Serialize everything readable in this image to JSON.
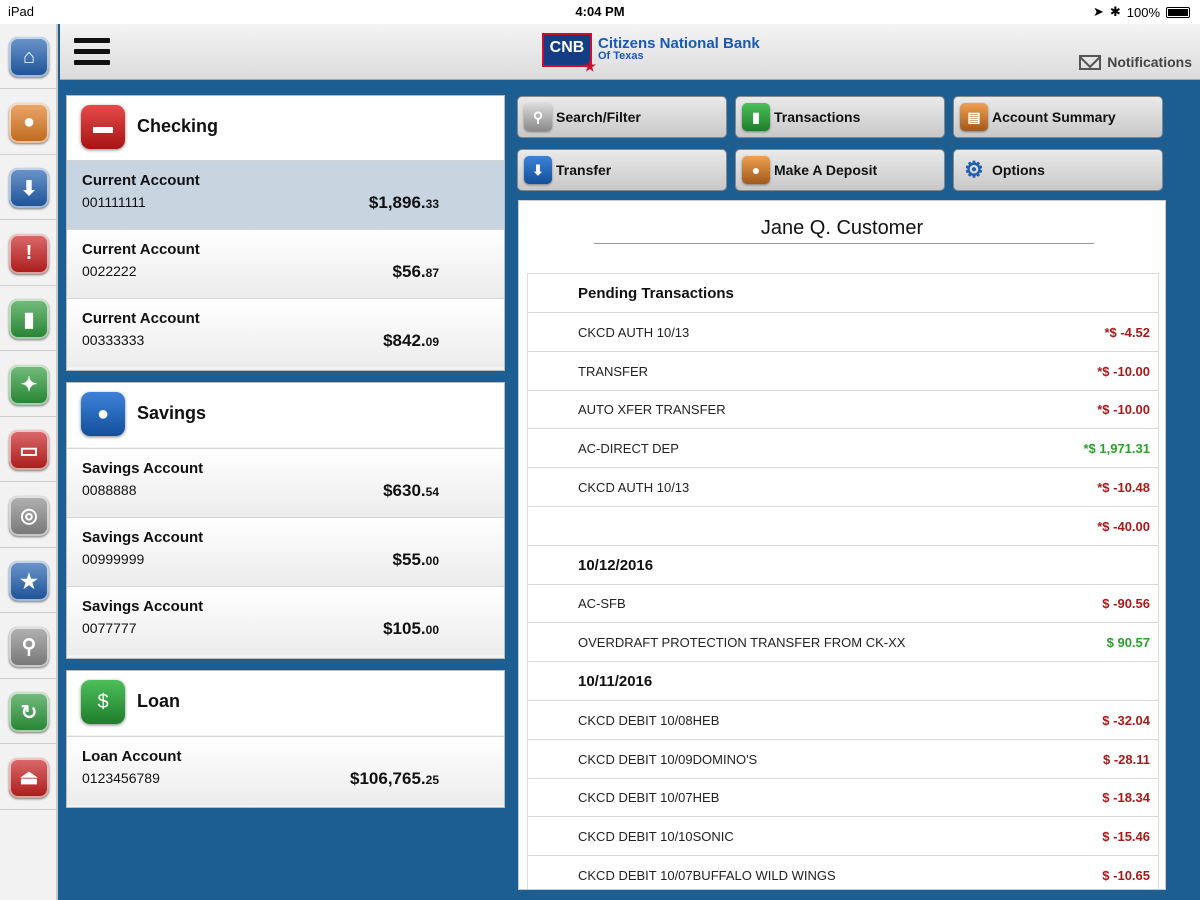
{
  "status_bar": {
    "device": "iPad",
    "time": "4:04 PM",
    "battery": "100%"
  },
  "header": {
    "bank_abbrev": "CNB",
    "bank_line1": "Citizens National Bank",
    "bank_line2": "Of Texas",
    "notifications_label": "Notifications"
  },
  "sidebar": {
    "icons": [
      "home-icon",
      "piggy-bank-icon",
      "download-icon",
      "alert-icon",
      "chart-icon",
      "handshake-icon",
      "chat-icon",
      "settings-icon",
      "globe-star-icon",
      "search-icon",
      "refresh-icon",
      "logout-icon"
    ],
    "colors": [
      "#1f5fb0",
      "#e07a1f",
      "#1f5fb0",
      "#c81e1e",
      "#2c9a3a",
      "#2c9a3a",
      "#c81e1e",
      "#8a8a8a",
      "#1f5fb0",
      "#8a8a8a",
      "#2c9a3a",
      "#c81e1e"
    ]
  },
  "checking": {
    "title": "Checking",
    "accounts": [
      {
        "name": "Current Account",
        "number": "001111111",
        "balance_main": "$1,896.",
        "balance_cents": "33"
      },
      {
        "name": "Current Account",
        "number": "0022222",
        "balance_main": "$56.",
        "balance_cents": "87"
      },
      {
        "name": "Current Account",
        "number": "00333333",
        "balance_main": "$842.",
        "balance_cents": "09"
      }
    ]
  },
  "savings": {
    "title": "Savings",
    "accounts": [
      {
        "name": "Savings Account",
        "number": "0088888",
        "balance_main": "$630.",
        "balance_cents": "54"
      },
      {
        "name": "Savings Account",
        "number": "00999999",
        "balance_main": "$55.",
        "balance_cents": "00"
      },
      {
        "name": "Savings Account",
        "number": "0077777",
        "balance_main": "$105.",
        "balance_cents": "00"
      }
    ]
  },
  "loan": {
    "title": "Loan",
    "accounts": [
      {
        "name": "Loan Account",
        "number": "0123456789",
        "balance_main": "$106,765.",
        "balance_cents": "25"
      }
    ]
  },
  "actions": {
    "search_filter": "Search/Filter",
    "transactions": "Transactions",
    "account_summary": "Account Summary",
    "transfer": "Transfer",
    "make_deposit": "Make A Deposit",
    "options": "Options"
  },
  "detail": {
    "customer_name": "Jane Q. Customer",
    "rows": [
      {
        "type": "heading",
        "desc": "Pending Transactions",
        "amount": ""
      },
      {
        "type": "txn",
        "desc": "CKCD AUTH 10/13",
        "amount": "*$ -4.52",
        "sign": "neg"
      },
      {
        "type": "txn",
        "desc": "TRANSFER",
        "amount": "*$ -10.00",
        "sign": "neg"
      },
      {
        "type": "txn",
        "desc": "AUTO XFER TRANSFER",
        "amount": "*$ -10.00",
        "sign": "neg"
      },
      {
        "type": "txn",
        "desc": "AC-DIRECT DEP",
        "amount": "*$ 1,971.31",
        "sign": "pos"
      },
      {
        "type": "txn",
        "desc": "CKCD AUTH 10/13",
        "amount": "*$ -10.48",
        "sign": "neg"
      },
      {
        "type": "txn",
        "desc": "",
        "amount": "*$ -40.00",
        "sign": "neg"
      },
      {
        "type": "heading",
        "desc": "10/12/2016",
        "amount": ""
      },
      {
        "type": "txn",
        "desc": "AC-SFB",
        "amount": "$ -90.56",
        "sign": "neg"
      },
      {
        "type": "txn",
        "desc": "OVERDRAFT PROTECTION TRANSFER FROM CK-XX",
        "amount": "$ 90.57",
        "sign": "pos"
      },
      {
        "type": "heading",
        "desc": "10/11/2016",
        "amount": ""
      },
      {
        "type": "txn",
        "desc": "CKCD DEBIT 10/08HEB",
        "amount": "$ -32.04",
        "sign": "neg"
      },
      {
        "type": "txn",
        "desc": "CKCD DEBIT 10/09DOMINO'S",
        "amount": "$ -28.11",
        "sign": "neg"
      },
      {
        "type": "txn",
        "desc": "CKCD DEBIT 10/07HEB",
        "amount": "$ -18.34",
        "sign": "neg"
      },
      {
        "type": "txn",
        "desc": "CKCD DEBIT 10/10SONIC",
        "amount": "$ -15.46",
        "sign": "neg"
      },
      {
        "type": "txn",
        "desc": "CKCD DEBIT 10/07BUFFALO WILD WINGS",
        "amount": "$ -10.65",
        "sign": "neg"
      }
    ]
  },
  "colors": {
    "brand_blue": "#1d5e92",
    "negative": "#a81a1a",
    "positive": "#2aa12a"
  }
}
